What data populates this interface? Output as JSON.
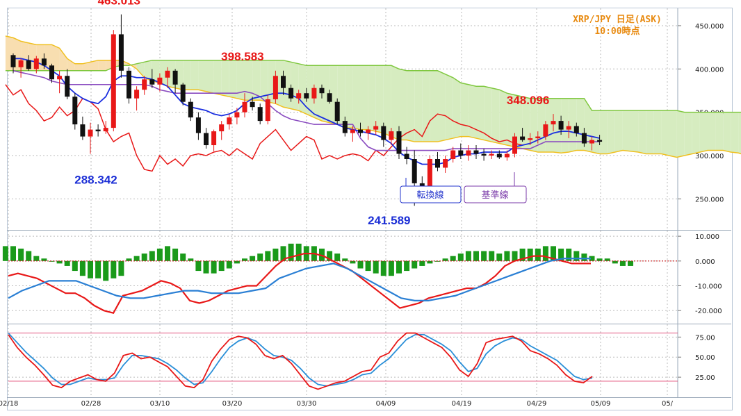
{
  "chart_data": [
    {
      "type": "candlestick",
      "title": "XRP/JPY 日足(ASK)",
      "subtitle": "10:00時点",
      "ylim": [
        215,
        470
      ],
      "yticks": [
        "450.000",
        "400.000",
        "350.000",
        "300.000",
        "250.000"
      ],
      "ytick_values": [
        450,
        400,
        350,
        300,
        250
      ],
      "x_dates": [
        "02/18",
        "02/28",
        "03/10",
        "03/20",
        "03/30",
        "04/09",
        "04/19",
        "04/29",
        "05/09",
        "05/"
      ],
      "annotations": [
        {
          "text": "463.013",
          "value": 463.013,
          "color": "#e81818"
        },
        {
          "text": "398.583",
          "value": 398.583,
          "color": "#e81818"
        },
        {
          "text": "348.096",
          "value": 348.096,
          "color": "#e81818"
        },
        {
          "text": "288.342",
          "value": 288.342,
          "color": "#1c2fd6"
        },
        {
          "text": "241.589",
          "value": 241.589,
          "color": "#1c2fd6"
        }
      ],
      "legend": [
        "転換線",
        "基準線"
      ],
      "colors": {
        "up": "#e81818",
        "down": "#111111",
        "tenkan": "#1a2ee0",
        "kijun": "#8a4cc0",
        "chikou": "#e81818",
        "span_a": "#f0c020",
        "span_b": "#80c840",
        "cloud_bull": "#d6ecc0",
        "cloud_bear": "#f8deb0"
      },
      "candles": [
        [
          416,
          418,
          395,
          402
        ],
        [
          402,
          412,
          390,
          410
        ],
        [
          410,
          416,
          398,
          400
        ],
        [
          400,
          415,
          395,
          412
        ],
        [
          412,
          418,
          400,
          404
        ],
        [
          404,
          406,
          384,
          388
        ],
        [
          388,
          398,
          372,
          392
        ],
        [
          392,
          400,
          365,
          368
        ],
        [
          368,
          372,
          330,
          336
        ],
        [
          336,
          345,
          318,
          322
        ],
        [
          322,
          338,
          302,
          330
        ],
        [
          330,
          336,
          322,
          328
        ],
        [
          328,
          340,
          325,
          332
        ],
        [
          332,
          445,
          328,
          440
        ],
        [
          440,
          463,
          390,
          398
        ],
        [
          398,
          402,
          360,
          366
        ],
        [
          366,
          380,
          352,
          376
        ],
        [
          376,
          392,
          370,
          388
        ],
        [
          388,
          400,
          378,
          382
        ],
        [
          382,
          395,
          374,
          390
        ],
        [
          390,
          402,
          378,
          398
        ],
        [
          398,
          400,
          372,
          382
        ],
        [
          382,
          384,
          358,
          362
        ],
        [
          362,
          366,
          340,
          344
        ],
        [
          344,
          350,
          318,
          326
        ],
        [
          326,
          332,
          308,
          312
        ],
        [
          312,
          330,
          305,
          328
        ],
        [
          328,
          340,
          318,
          336
        ],
        [
          336,
          348,
          330,
          344
        ],
        [
          344,
          355,
          336,
          350
        ],
        [
          350,
          372,
          344,
          362
        ],
        [
          362,
          368,
          352,
          356
        ],
        [
          356,
          360,
          336,
          340
        ],
        [
          340,
          370,
          336,
          365
        ],
        [
          365,
          398,
          360,
          392
        ],
        [
          392,
          398,
          370,
          378
        ],
        [
          378,
          382,
          362,
          366
        ],
        [
          366,
          376,
          360,
          372
        ],
        [
          372,
          378,
          362,
          366
        ],
        [
          366,
          382,
          360,
          378
        ],
        [
          378,
          382,
          366,
          372
        ],
        [
          372,
          376,
          360,
          362
        ],
        [
          362,
          366,
          336,
          340
        ],
        [
          340,
          345,
          322,
          326
        ],
        [
          326,
          334,
          316,
          330
        ],
        [
          330,
          338,
          322,
          326
        ],
        [
          326,
          334,
          318,
          330
        ],
        [
          330,
          340,
          324,
          334
        ],
        [
          334,
          338,
          310,
          318
        ],
        [
          318,
          332,
          312,
          328
        ],
        [
          328,
          334,
          296,
          302
        ],
        [
          302,
          310,
          290,
          296
        ],
        [
          296,
          306,
          242,
          268
        ],
        [
          268,
          276,
          258,
          262
        ],
        [
          262,
          300,
          256,
          296
        ],
        [
          296,
          304,
          282,
          286
        ],
        [
          286,
          300,
          280,
          296
        ],
        [
          296,
          310,
          292,
          306
        ],
        [
          306,
          314,
          296,
          300
        ],
        [
          300,
          312,
          294,
          306
        ],
        [
          306,
          312,
          296,
          302
        ],
        [
          302,
          308,
          294,
          300
        ],
        [
          300,
          306,
          296,
          302
        ],
        [
          302,
          306,
          296,
          298
        ],
        [
          298,
          306,
          294,
          302
        ],
        [
          302,
          326,
          298,
          322
        ],
        [
          322,
          332,
          316,
          318
        ],
        [
          318,
          326,
          312,
          320
        ],
        [
          320,
          328,
          314,
          322
        ],
        [
          322,
          340,
          318,
          336
        ],
        [
          336,
          348,
          328,
          340
        ],
        [
          340,
          346,
          324,
          330
        ],
        [
          330,
          340,
          320,
          334
        ],
        [
          334,
          338,
          322,
          326
        ],
        [
          326,
          332,
          310,
          314
        ],
        [
          314,
          322,
          306,
          318
        ],
        [
          318,
          324,
          312,
          316
        ]
      ],
      "tenkan": [
        412,
        412,
        410,
        408,
        404,
        398,
        392,
        380,
        372,
        366,
        362,
        360,
        368,
        386,
        392,
        392,
        390,
        390,
        388,
        384,
        380,
        370,
        360,
        356,
        354,
        352,
        348,
        346,
        348,
        352,
        360,
        366,
        368,
        370,
        372,
        372,
        370,
        366,
        356,
        348,
        344,
        340,
        336,
        332,
        330,
        328,
        326,
        324,
        320,
        314,
        304,
        298,
        294,
        290,
        290,
        290,
        292,
        298,
        300,
        302,
        302,
        304,
        304,
        304,
        304,
        310,
        312,
        314,
        318,
        322,
        326,
        328,
        328,
        326,
        324,
        322,
        320
      ],
      "kijun": [
        398,
        396,
        394,
        392,
        390,
        386,
        384,
        382,
        382,
        382,
        382,
        382,
        382,
        382,
        382,
        382,
        382,
        382,
        380,
        376,
        374,
        372,
        372,
        372,
        372,
        372,
        372,
        372,
        372,
        372,
        374,
        372,
        368,
        360,
        352,
        346,
        342,
        340,
        338,
        336,
        336,
        336,
        336,
        336,
        336,
        320,
        310,
        306,
        306,
        306,
        306,
        306,
        306,
        306,
        306,
        306,
        306,
        308,
        308,
        308,
        308,
        308,
        308,
        308,
        308,
        308,
        308,
        308,
        312,
        316,
        316,
        316,
        316,
        316,
        316,
        316,
        316
      ],
      "chikou": [
        382,
        370,
        376,
        360,
        352,
        340,
        344,
        356,
        346,
        352,
        366,
        362,
        354,
        330,
        316,
        322,
        326,
        300,
        284,
        282,
        300,
        290,
        296,
        288,
        300,
        302,
        300,
        304,
        306,
        300,
        308,
        302,
        296,
        314,
        322,
        330,
        318,
        306,
        314,
        322,
        318,
        296,
        300,
        296,
        300,
        302,
        300,
        294,
        306,
        300,
        310,
        320,
        326,
        330,
        322,
        340,
        348,
        346,
        340,
        336,
        334,
        330,
        326,
        320,
        316,
        318,
        314,
        312
      ],
      "span_a": [
        438,
        436,
        432,
        430,
        428,
        428,
        428,
        424,
        412,
        406,
        406,
        408,
        410,
        410,
        410,
        410,
        406,
        400,
        390,
        386,
        384,
        380,
        378,
        376,
        376,
        376,
        374,
        372,
        370,
        368,
        366,
        364,
        364,
        364,
        362,
        360,
        356,
        354,
        352,
        348,
        344,
        340,
        338,
        336,
        332,
        332,
        330,
        330,
        328,
        326,
        322,
        318,
        318,
        316,
        316,
        316,
        316,
        318,
        320,
        322,
        322,
        320,
        318,
        316,
        314,
        312,
        310,
        308,
        306,
        304,
        304,
        304,
        303,
        304,
        306,
        306,
        304,
        302,
        302,
        304,
        306,
        305,
        304,
        302,
        302,
        302,
        300,
        298,
        300,
        302,
        304,
        306,
        306,
        306,
        304,
        303,
        300,
        300
      ],
      "span_b": [
        398,
        398,
        398,
        398,
        398,
        398,
        398,
        398,
        398,
        398,
        398,
        398,
        398,
        398,
        402,
        404,
        404,
        406,
        408,
        410,
        410,
        410,
        410,
        410,
        410,
        410,
        410,
        410,
        410,
        410,
        410,
        410,
        410,
        410,
        410,
        410,
        410,
        408,
        406,
        404,
        404,
        404,
        404,
        404,
        404,
        404,
        404,
        404,
        404,
        404,
        404,
        400,
        398,
        398,
        398,
        398,
        398,
        394,
        390,
        384,
        382,
        380,
        380,
        378,
        376,
        372,
        370,
        368,
        366,
        366,
        366,
        366,
        366,
        366,
        366,
        366,
        352,
        352,
        352,
        352,
        352,
        352,
        352,
        352,
        352,
        352,
        352,
        352,
        350,
        350,
        350,
        350,
        350,
        350,
        350,
        350,
        350,
        350
      ],
      "extras": {
        "span_a_tail": [
          310,
          308,
          306,
          305
        ]
      }
    },
    {
      "type": "macd",
      "ylim": [
        -25,
        12
      ],
      "yticks": [
        "10.000",
        "0.000",
        "-10.000",
        "-20.000"
      ],
      "ytick_values": [
        10,
        0,
        -10,
        -20
      ],
      "histogram": [
        6,
        6,
        5,
        4,
        2,
        1,
        0,
        -1,
        -2,
        -4,
        -6,
        -7,
        -7,
        -8,
        -7,
        -6,
        1,
        2,
        3,
        4,
        5,
        6,
        5,
        3,
        1,
        -4,
        -5,
        -5,
        -4,
        -3,
        -1,
        1,
        2,
        3,
        4,
        5,
        6,
        7,
        7,
        6,
        6,
        5,
        4,
        3,
        1,
        -1,
        -3,
        -4,
        -5,
        -6,
        -6,
        -5,
        -4,
        -3,
        -2,
        -1,
        0,
        1,
        2,
        3,
        4,
        4,
        4,
        4,
        3,
        4,
        4,
        5,
        5,
        5,
        6,
        6,
        5,
        5,
        4,
        3,
        2,
        1,
        1,
        -1,
        -2,
        -2
      ],
      "macd": [
        -6,
        -5,
        -6,
        -7,
        -9,
        -11,
        -13,
        -13,
        -15,
        -18,
        -20,
        -21,
        -14,
        -13,
        -12,
        -10,
        -8,
        -9,
        -11,
        -16,
        -17,
        -16,
        -14,
        -12,
        -11,
        -10,
        -10,
        -6,
        -2,
        1,
        2,
        3,
        3,
        2,
        0,
        -2,
        -4,
        -7,
        -10,
        -13,
        -16,
        -19,
        -18,
        -17,
        -15,
        -14,
        -13,
        -12,
        -11,
        -11,
        -9,
        -6,
        -2,
        0,
        1,
        2,
        2,
        1,
        0,
        -1,
        -1,
        -1
      ],
      "signal": [
        -15,
        -12,
        -10,
        -8,
        -8,
        -8,
        -10,
        -12,
        -14,
        -15,
        -15,
        -14,
        -13,
        -12,
        -12,
        -13,
        -13,
        -13,
        -12,
        -11,
        -7,
        -5,
        -3,
        -2,
        -1,
        -3,
        -6,
        -9,
        -12,
        -15,
        -16,
        -16,
        -15,
        -14,
        -12,
        -10,
        -8,
        -6,
        -4,
        -2,
        0,
        1,
        1,
        1
      ],
      "colors": {
        "hist": "#1a9a1a",
        "macd": "#e81818",
        "signal": "#2a7fd4",
        "zero": "#c81818"
      }
    },
    {
      "type": "stochastic",
      "ylim": [
        0,
        90
      ],
      "yticks": [
        "75.00",
        "50.00",
        "25.00"
      ],
      "ytick_values": [
        75,
        50,
        25
      ],
      "upper_band": 80,
      "lower_band": 20,
      "k": [
        78,
        62,
        50,
        40,
        28,
        15,
        12,
        20,
        24,
        28,
        22,
        20,
        30,
        52,
        55,
        48,
        50,
        44,
        38,
        26,
        14,
        12,
        22,
        45,
        60,
        72,
        76,
        74,
        66,
        52,
        48,
        52,
        42,
        28,
        14,
        10,
        14,
        18,
        20,
        26,
        32,
        34,
        50,
        55,
        70,
        80,
        80,
        74,
        68,
        62,
        50,
        34,
        26,
        42,
        68,
        72,
        74,
        76,
        70,
        58,
        54,
        48,
        40,
        28,
        20,
        18,
        26
      ],
      "d": [
        80,
        68,
        56,
        46,
        36,
        24,
        16,
        16,
        20,
        24,
        22,
        22,
        24,
        40,
        52,
        52,
        50,
        48,
        42,
        34,
        24,
        16,
        18,
        32,
        48,
        62,
        70,
        74,
        70,
        60,
        52,
        50,
        46,
        36,
        24,
        16,
        14,
        16,
        18,
        22,
        28,
        30,
        40,
        48,
        60,
        72,
        78,
        78,
        72,
        66,
        58,
        44,
        32,
        36,
        54,
        64,
        70,
        74,
        72,
        64,
        58,
        52,
        46,
        36,
        26,
        22,
        24
      ],
      "colors": {
        "k": "#e81818",
        "d": "#2a8fd8",
        "band": "#e04c78"
      }
    }
  ],
  "labels": {
    "tenkan": "転換線",
    "kijun": "基準線"
  }
}
